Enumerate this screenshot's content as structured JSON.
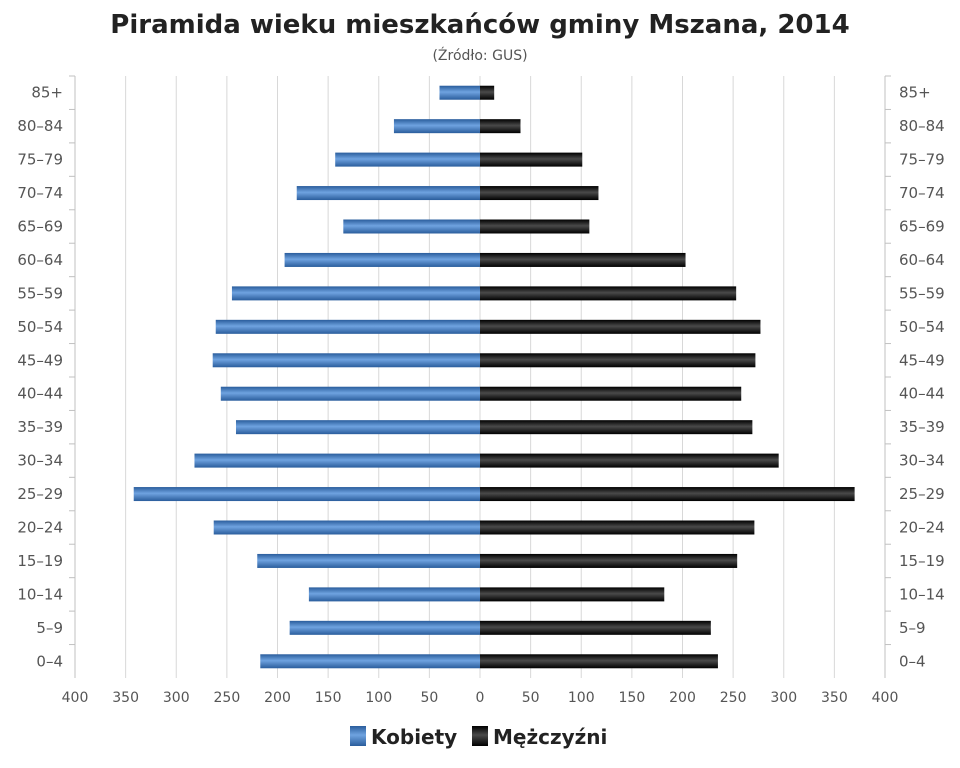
{
  "chart_data": {
    "type": "bar",
    "orientation": "horizontal-pyramid",
    "title": "Piramida wieku mieszkańców gminy Mszana, 2014",
    "subtitle": "(Źródło: GUS)",
    "categories": [
      "85+",
      "80–84",
      "75–79",
      "70–74",
      "65–69",
      "60–64",
      "55–59",
      "50–54",
      "45–49",
      "40–44",
      "35–39",
      "30–34",
      "25–29",
      "20–24",
      "15–19",
      "10–14",
      "5–9",
      "0–4"
    ],
    "series": [
      {
        "name": "Kobiety",
        "color": "#3d78c0",
        "values": [
          40,
          85,
          143,
          181,
          135,
          193,
          245,
          261,
          264,
          256,
          241,
          282,
          342,
          263,
          220,
          169,
          188,
          217
        ]
      },
      {
        "name": "Mężczyźni",
        "color": "#1a1a1a",
        "values": [
          14,
          40,
          101,
          117,
          108,
          203,
          253,
          277,
          272,
          258,
          269,
          295,
          370,
          271,
          254,
          182,
          228,
          235
        ]
      }
    ],
    "x_ticks": [
      "400",
      "350",
      "300",
      "250",
      "200",
      "150",
      "100",
      "50",
      "0",
      "50",
      "100",
      "150",
      "200",
      "250",
      "300",
      "350",
      "400"
    ],
    "xlim": [
      -400,
      400
    ],
    "grid": true,
    "legend_position": "bottom-center"
  }
}
